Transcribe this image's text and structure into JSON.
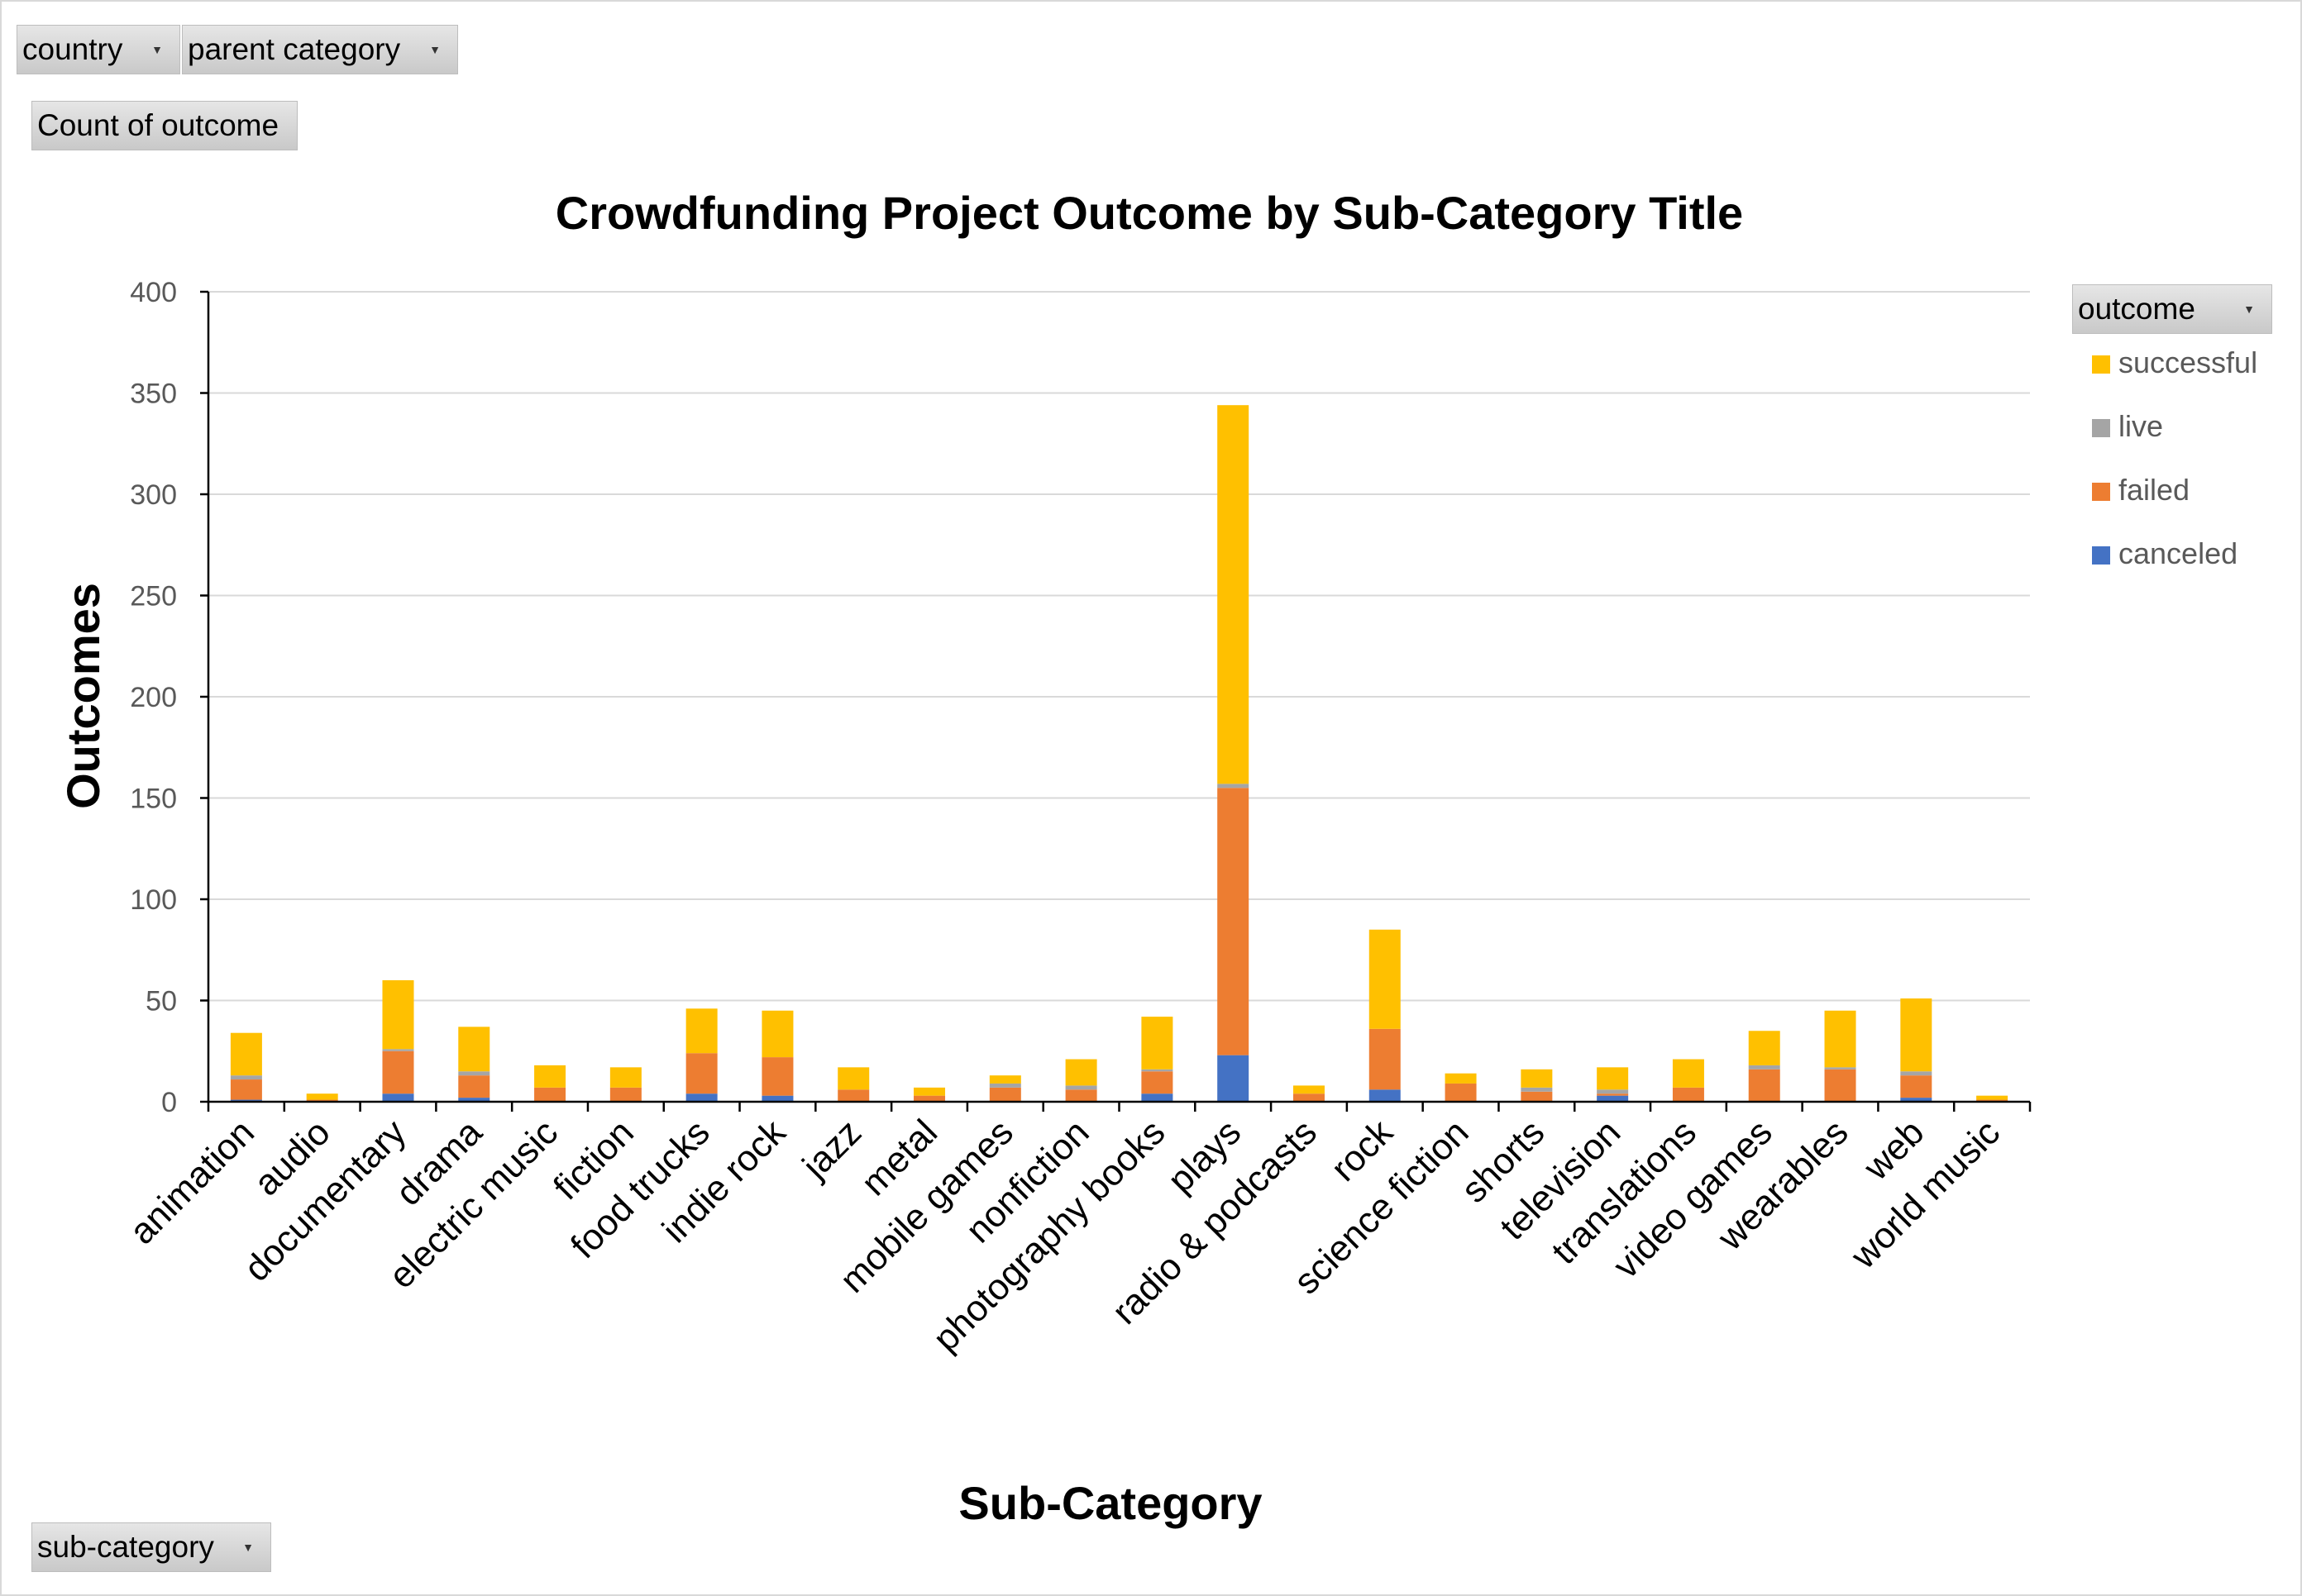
{
  "filters": {
    "country": {
      "label": "country"
    },
    "parent_category": {
      "label": "parent category"
    },
    "values": {
      "label": "Count of outcome"
    },
    "legend_field": {
      "label": "outcome"
    },
    "axis_field": {
      "label": "sub-category"
    }
  },
  "chart_data": {
    "type": "bar",
    "stacked": true,
    "title": "Crowdfunding Project Outcome by Sub-Category Title",
    "xlabel": "Sub-Category",
    "ylabel": "Outcomes",
    "ylim": [
      0,
      400
    ],
    "yticks": [
      0,
      50,
      100,
      150,
      200,
      250,
      300,
      350,
      400
    ],
    "grid": true,
    "legend_position": "right",
    "categories": [
      "animation",
      "audio",
      "documentary",
      "drama",
      "electric music",
      "fiction",
      "food trucks",
      "indie rock",
      "jazz",
      "metal",
      "mobile games",
      "nonfiction",
      "photography books",
      "plays",
      "radio & podcasts",
      "rock",
      "science fiction",
      "shorts",
      "television",
      "translations",
      "video games",
      "wearables",
      "web",
      "world music"
    ],
    "series": [
      {
        "name": "canceled",
        "color": "#4472C4",
        "values": [
          1,
          0,
          4,
          2,
          0,
          0,
          4,
          3,
          0,
          0,
          0,
          0,
          4,
          23,
          0,
          6,
          0,
          0,
          3,
          0,
          0,
          0,
          2,
          0
        ]
      },
      {
        "name": "failed",
        "color": "#ED7D31",
        "values": [
          10,
          1,
          21,
          11,
          7,
          7,
          20,
          19,
          6,
          3,
          7,
          6,
          11,
          132,
          4,
          30,
          9,
          5,
          1,
          7,
          16,
          16,
          11,
          1
        ]
      },
      {
        "name": "live",
        "color": "#A5A5A5",
        "values": [
          2,
          0,
          1,
          2,
          0,
          0,
          0,
          0,
          0,
          0,
          2,
          2,
          1,
          2,
          0,
          0,
          0,
          2,
          2,
          0,
          2,
          1,
          2,
          0
        ]
      },
      {
        "name": "successful",
        "color": "#FFC000",
        "values": [
          21,
          3,
          34,
          22,
          11,
          10,
          22,
          23,
          11,
          4,
          4,
          13,
          26,
          187,
          4,
          49,
          5,
          9,
          11,
          14,
          17,
          28,
          36,
          2
        ]
      }
    ],
    "legend_order": [
      "successful",
      "live",
      "failed",
      "canceled"
    ]
  }
}
